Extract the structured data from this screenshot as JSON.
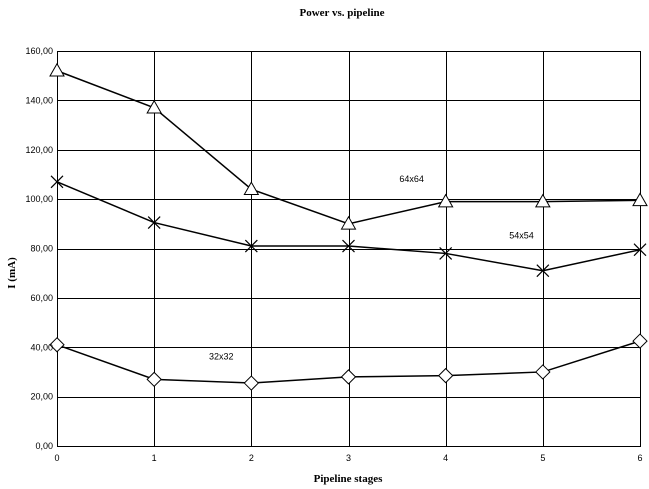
{
  "chart_data": {
    "type": "line",
    "title": "Power vs. pipeline",
    "xlabel": "Pipeline stages",
    "ylabel": "I (mA)",
    "x": [
      0,
      1,
      2,
      3,
      4,
      5,
      6
    ],
    "xlim": [
      0,
      6
    ],
    "ylim": [
      0,
      160
    ],
    "y_ticks": [
      "0,00",
      "20,00",
      "40,00",
      "60,00",
      "80,00",
      "100,00",
      "120,00",
      "140,00",
      "160,00"
    ],
    "x_ticks": [
      "0",
      "1",
      "2",
      "3",
      "4",
      "5",
      "6"
    ],
    "grid": true,
    "series": [
      {
        "name": "64x64",
        "marker": "triangle",
        "values": [
          152,
          137,
          104,
          90,
          99,
          99,
          99.5
        ]
      },
      {
        "name": "54x54",
        "marker": "cross",
        "values": [
          107,
          90.5,
          81,
          81,
          78,
          71,
          79.5
        ]
      },
      {
        "name": "32x32",
        "marker": "diamond",
        "values": [
          41,
          27,
          25.5,
          28,
          28.5,
          30,
          42.5
        ]
      }
    ],
    "annotations": [
      {
        "text": "64x64",
        "x": 3.65,
        "y": 107
      },
      {
        "text": "54x54",
        "x": 4.78,
        "y": 84
      },
      {
        "text": "32x32",
        "x": 1.69,
        "y": 35
      }
    ]
  }
}
